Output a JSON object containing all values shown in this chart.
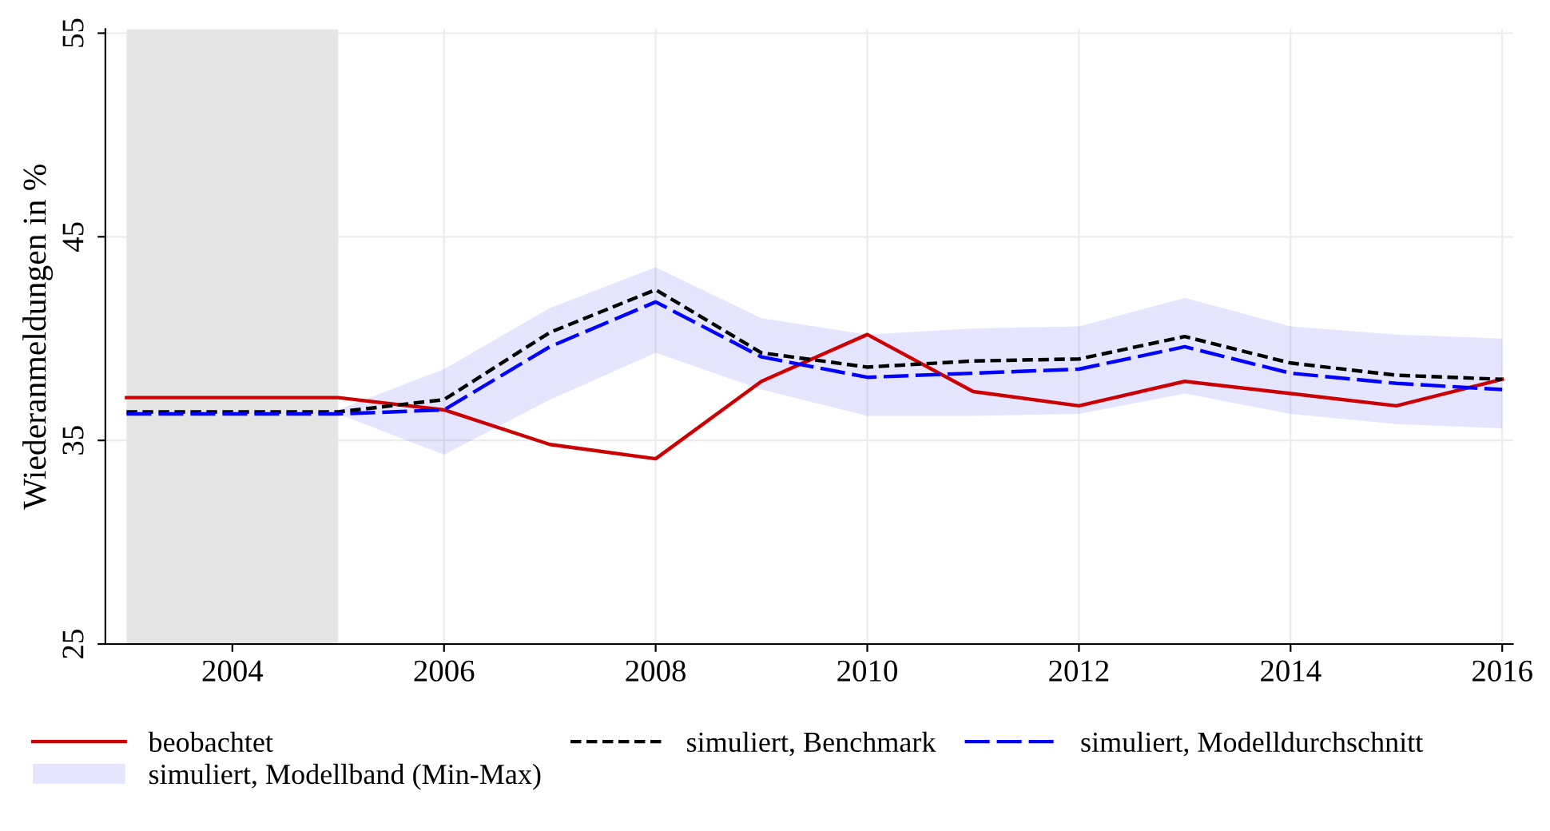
{
  "chart_data": {
    "type": "line",
    "ylabel": "Wiederanmeldungen in %",
    "x": [
      2003,
      2004,
      2005,
      2006,
      2007,
      2008,
      2009,
      2010,
      2011,
      2012,
      2013,
      2014,
      2015,
      2016
    ],
    "series": [
      {
        "name": "beobachtet",
        "color": "#cc0000",
        "line_style": "solid",
        "values": [
          37.1,
          37.1,
          37.1,
          36.5,
          34.8,
          34.1,
          37.9,
          40.2,
          37.4,
          36.7,
          37.9,
          37.3,
          36.7,
          38.0
        ]
      },
      {
        "name": "simuliert, Benchmark",
        "color": "#000000",
        "line_style": "dashed",
        "values": [
          36.4,
          36.4,
          36.4,
          37.0,
          40.3,
          42.4,
          39.3,
          38.6,
          38.9,
          39.0,
          40.1,
          38.8,
          38.2,
          38.0
        ]
      },
      {
        "name": "simuliert, Modelldurchschnitt",
        "color": "#0000ff",
        "line_style": "dashed",
        "values": [
          36.3,
          36.3,
          36.3,
          36.5,
          39.6,
          41.8,
          39.1,
          38.1,
          38.3,
          38.5,
          39.6,
          38.3,
          37.8,
          37.5
        ],
        "lower": [
          null,
          null,
          36.3,
          34.3,
          37.0,
          39.3,
          37.5,
          36.2,
          36.2,
          36.3,
          37.3,
          36.3,
          35.8,
          35.6
        ],
        "upper": [
          null,
          null,
          36.5,
          38.5,
          41.5,
          43.5,
          41.0,
          40.2,
          40.5,
          40.6,
          42.0,
          40.6,
          40.2,
          40.0
        ]
      }
    ],
    "annotations": [
      "simuliert, Modellband (Min-Max)"
    ],
    "bands": [
      {
        "axis": "x",
        "from": 2003,
        "to": 2005,
        "color": "#e5e5e5"
      }
    ],
    "xlim": [
      2002.8,
      2016.1
    ],
    "xticks": [
      2004,
      2006,
      2008,
      2010,
      2012,
      2014,
      2016
    ],
    "ylim": [
      25,
      55.2
    ],
    "yticks": [
      25,
      35,
      45,
      55
    ],
    "grid": true,
    "legend": "bottom",
    "marker": "none"
  }
}
